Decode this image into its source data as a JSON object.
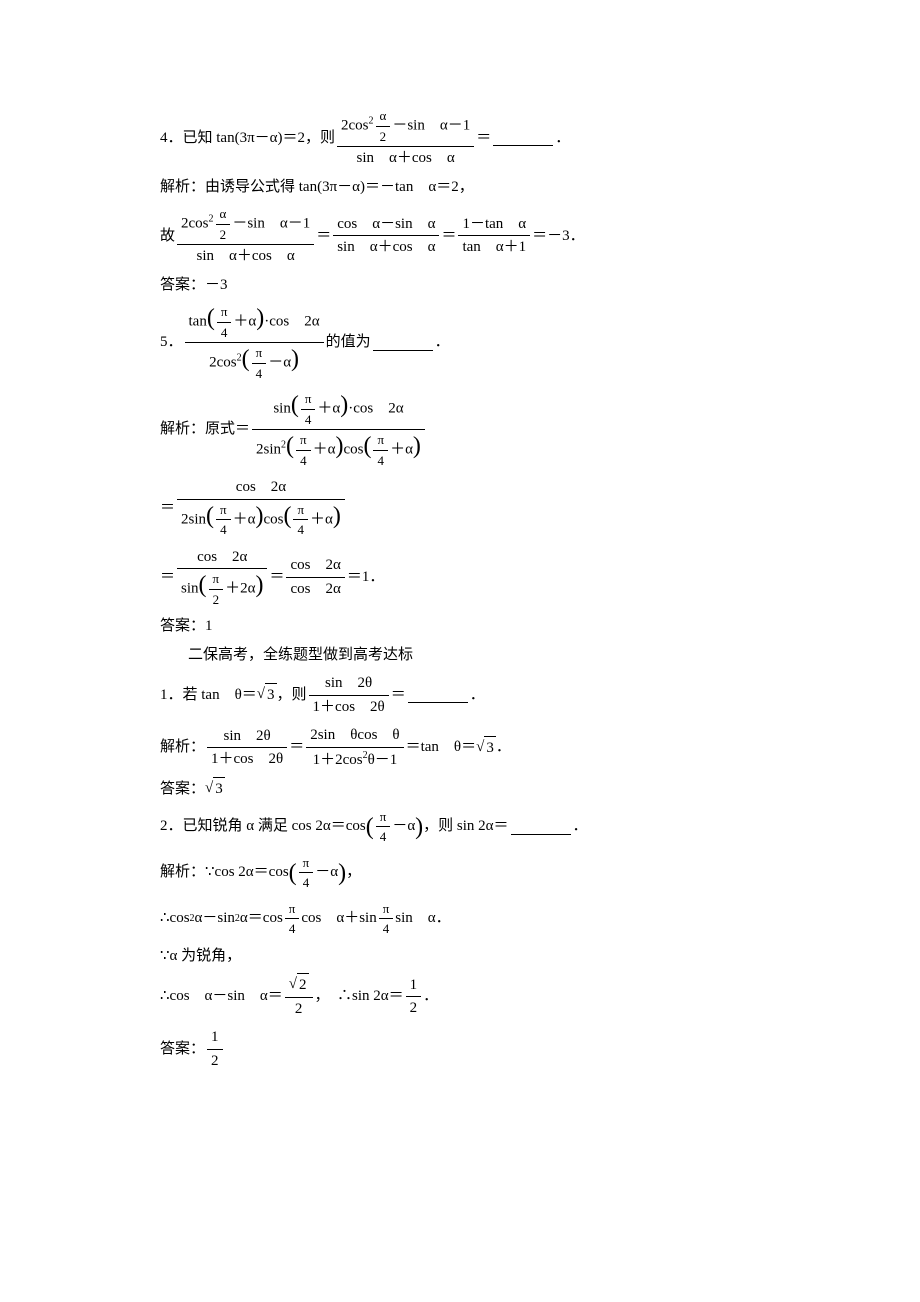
{
  "p4": {
    "num": "4．",
    "known": "已知 tan(3π－α)＝2，则",
    "frac_num_a": "2cos",
    "frac_num_sup": "2",
    "frac_inner_num": "α",
    "frac_inner_den": "2",
    "frac_num_b": "－sin　α－1",
    "frac_den": "sin　α＋cos　α",
    "eq": "＝",
    "period": "．",
    "sol_label": "解析：",
    "sol1": "由诱导公式得 tan(3π－α)＝－tan　α＝2，",
    "sol2_pre": "故",
    "f2_num_a": "2cos",
    "f2_sup": "2",
    "f2_inner_num": "α",
    "f2_inner_den": "2",
    "f2_num_b": "－sin　α－1",
    "f2_den": "sin　α＋cos　α",
    "f3_num": "cos　α－sin　α",
    "f3_den": "sin　α＋cos　α",
    "f4_num": "1－tan　α",
    "f4_den": "tan　α＋1",
    "f4_tail": "＝－3．",
    "ans_label": "答案：",
    "ans": "－3"
  },
  "p5": {
    "num": "5．",
    "f1_num_a": "tan",
    "pi4": "π",
    "four": "4",
    "plus_a": "＋α",
    "dot_cos": "·cos　2α",
    "f1_den_a": "2cos",
    "sup2": "2",
    "minus_a": "－α",
    "tail": "的值为",
    "period": "．",
    "sol_label": "解析：",
    "sol_pre": "原式＝",
    "s1_num_a": "sin",
    "s1_den_a": "2sin",
    "cos": "cos",
    "eq": "＝",
    "s2_num": "cos　2α",
    "s2_den_a": "2sin",
    "s3_num": "cos　2α",
    "s3_den_a": "sin",
    "half_pi": "π",
    "two": "2",
    "plus_2a": "＋2α",
    "s4_num": "cos　2α",
    "s4_den": "cos　2α",
    "s4_tail": "＝1．",
    "ans_label": "答案：",
    "ans": "1"
  },
  "section2": "二保高考，全练题型做到高考达标",
  "q1": {
    "num": "1．",
    "pre": "若 tan　θ＝",
    "sqrt3": "3",
    "mid": "，则",
    "f_num": "sin　2θ",
    "f_den": "1＋cos　2θ",
    "eq": "＝",
    "period": "．",
    "sol_label": "解析：",
    "s1_num": "sin　2θ",
    "s1_den": "1＋cos　2θ",
    "s2_num": "2sin　θcos　θ",
    "s2_den_a": "1＋2cos",
    "s2_sup": "2",
    "s2_den_b": "θ－1",
    "s_tail": "＝tan　θ＝",
    "ans_label": "答案：",
    "ans_sqrt": "3"
  },
  "q2": {
    "num": "2．",
    "pre": "已知锐角 α 满足 cos 2α＝cos",
    "pi": "π",
    "four": "4",
    "minus_a": "－α",
    "mid": "，则 sin 2α＝",
    "period": "．",
    "sol_label": "解析：",
    "because": "∵cos 2α＝cos",
    "comma": "，",
    "therefore1_a": "∴cos",
    "sup2": "2",
    "therefore1_b": "α－sin",
    "therefore1_c": "α＝cos",
    "cos_a": "cos　α＋sin",
    "sin_a": "sin　α．",
    "because2": "∵α 为锐角，",
    "therefore2": "∴cos　α－sin　α＝",
    "sqrt2": "2",
    "two": "2",
    "mid2": "，　∴sin 2α＝",
    "half_num": "1",
    "half_den": "2",
    "tail_period": "．",
    "ans_label": "答案：",
    "ans_num": "1",
    "ans_den": "2"
  }
}
